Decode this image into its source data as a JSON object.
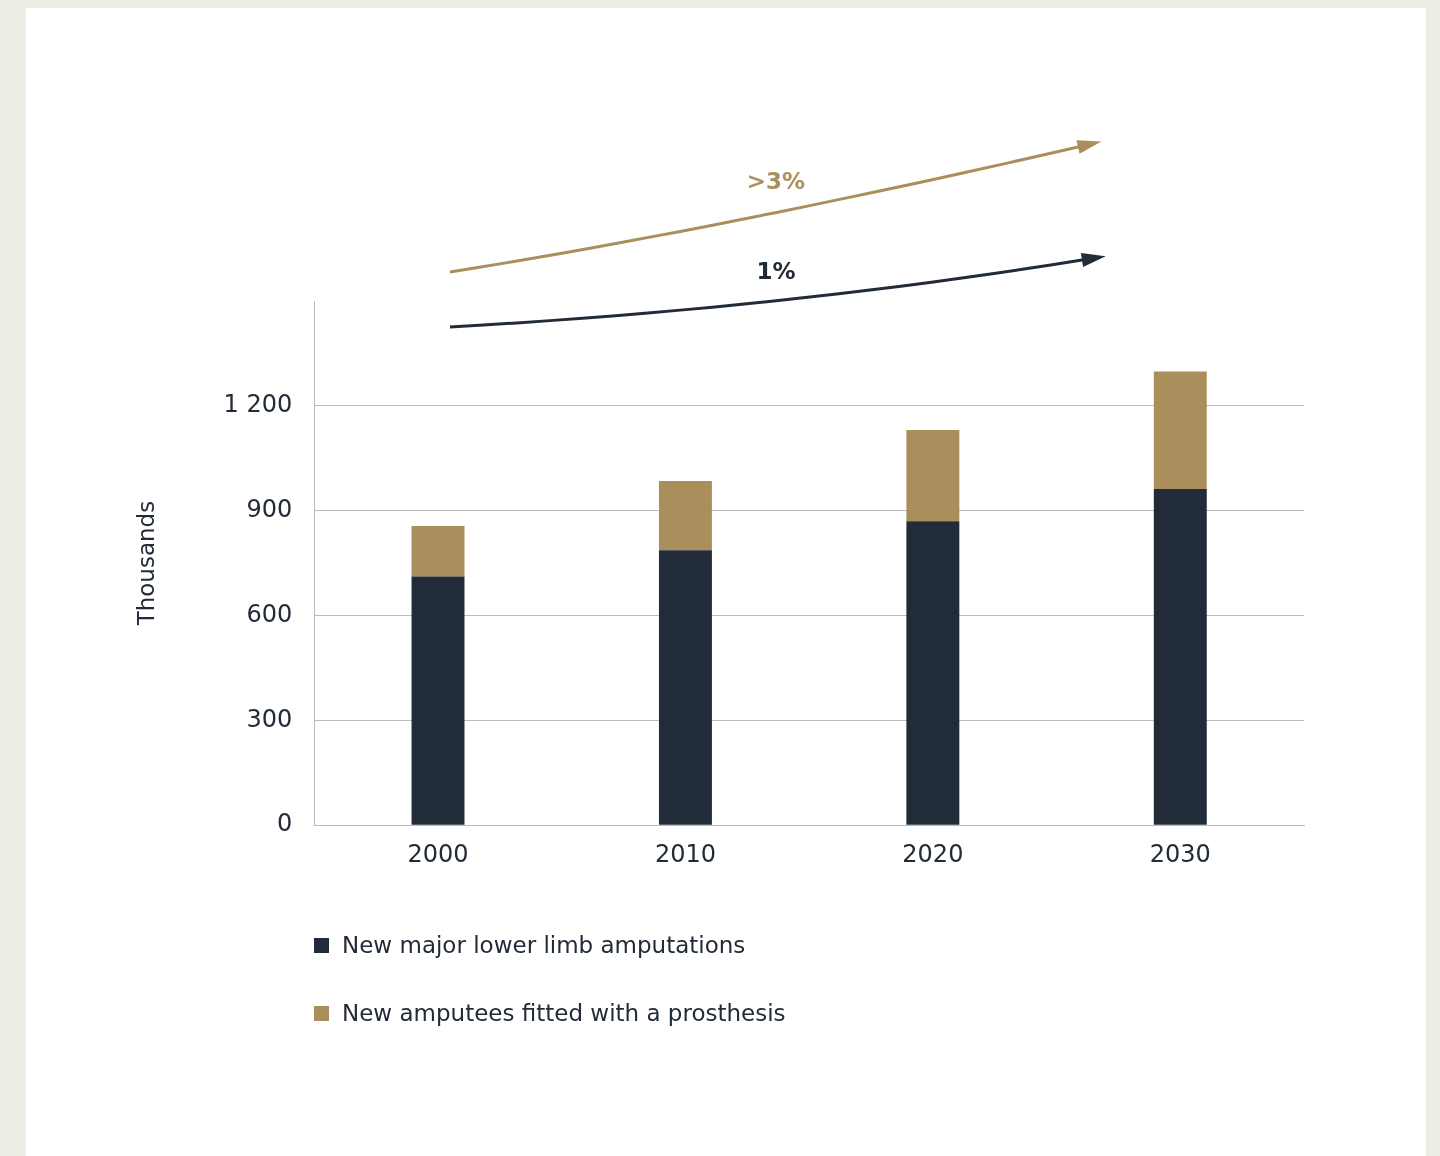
{
  "chart_data": {
    "type": "bar",
    "stacked": true,
    "ylabel": "Thousands",
    "categories": [
      "2000",
      "2010",
      "2020",
      "2030"
    ],
    "series": [
      {
        "name": "New major lower limb amputations",
        "color": "#222b38",
        "values": [
          712,
          787,
          870,
          962
        ]
      },
      {
        "name": "New amputees fitted with a prosthesis",
        "color": "#aa8f5d",
        "values": [
          144,
          198,
          261,
          336
        ]
      }
    ],
    "ylim": [
      0,
      1500
    ],
    "yticks": [
      0,
      300,
      600,
      900,
      {
        "value": 1200,
        "label": "1 200"
      }
    ],
    "grid": "y",
    "legend": "bottom",
    "annotations": [
      ">3%",
      "1%"
    ]
  }
}
